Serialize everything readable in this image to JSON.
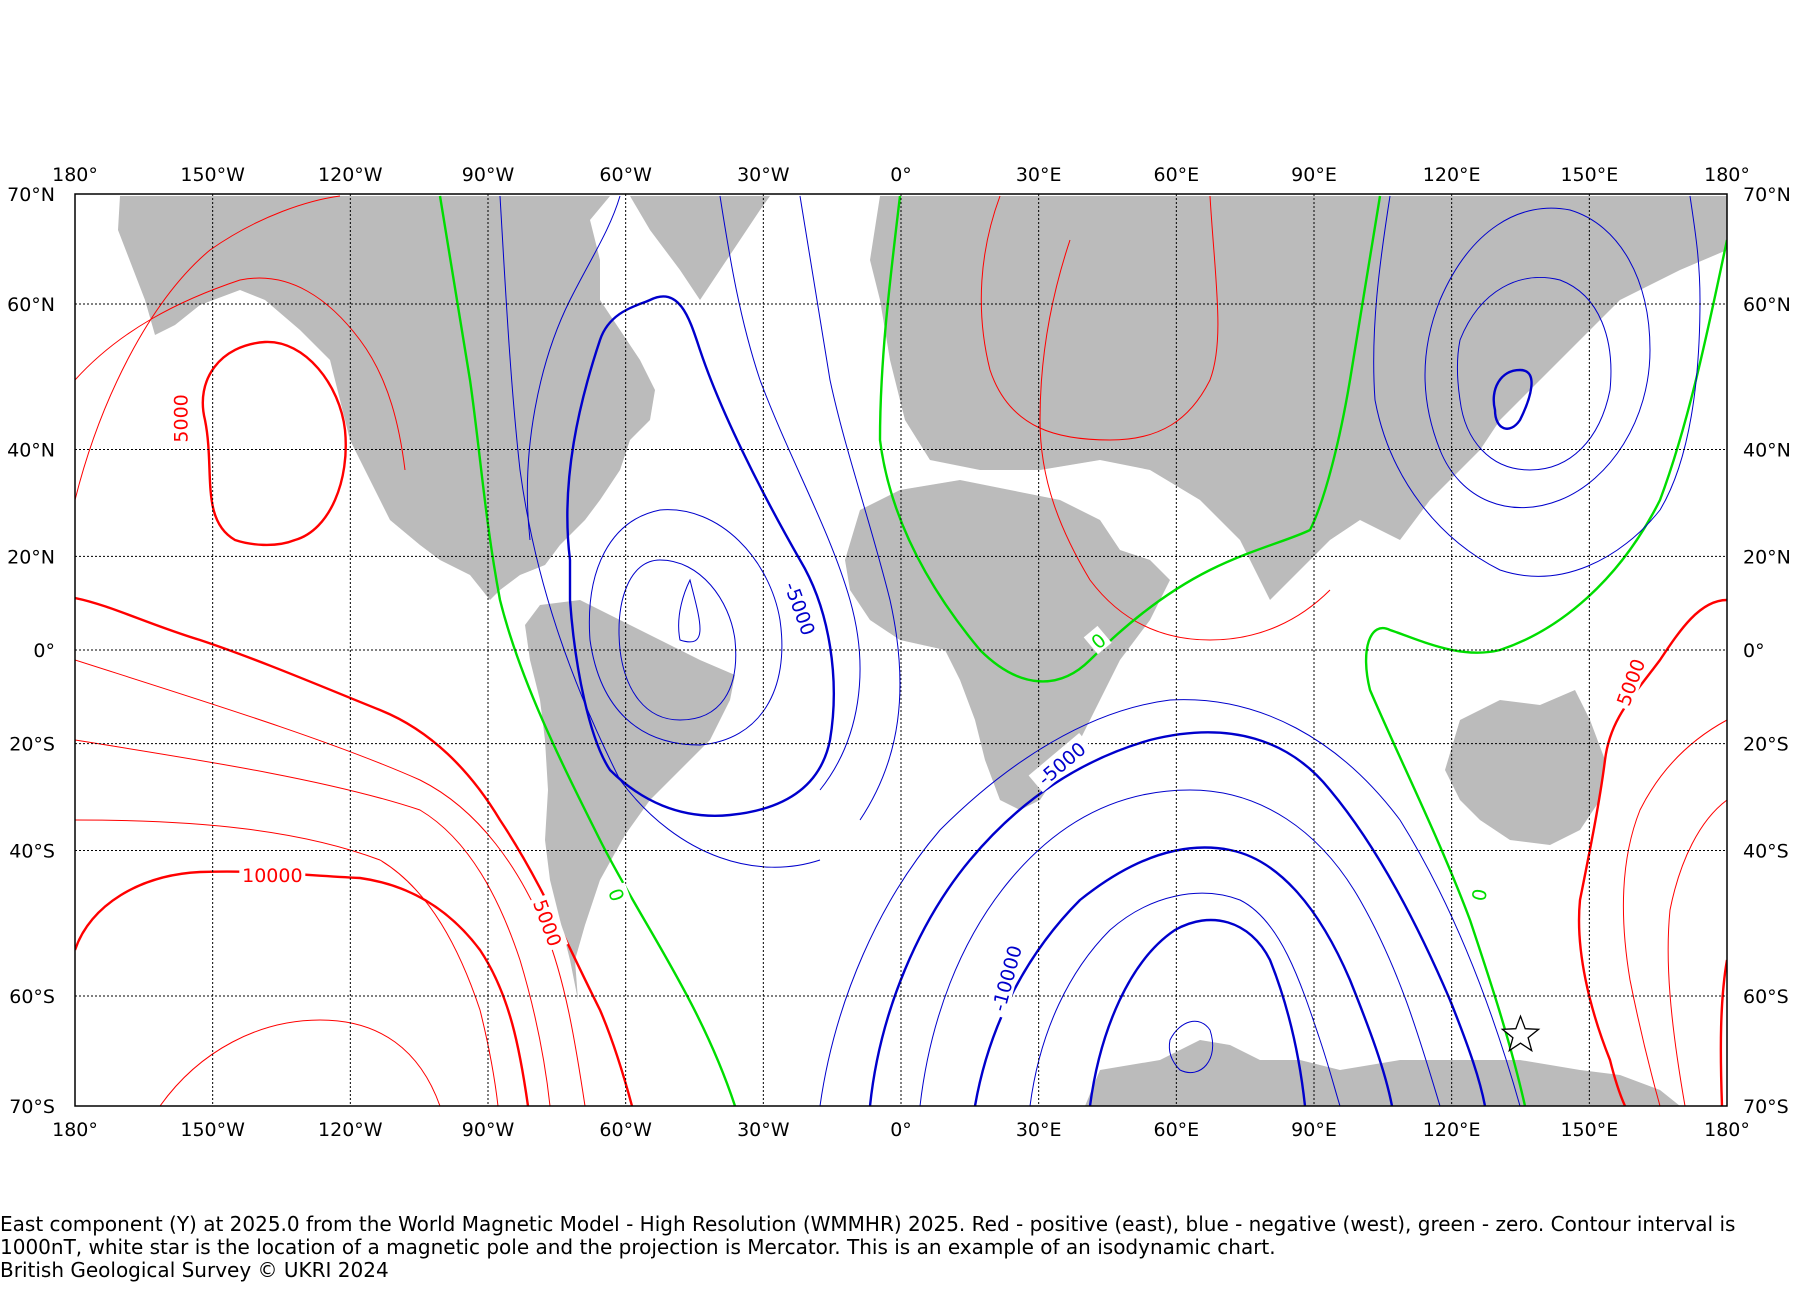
{
  "map": {
    "projection": "Mercator",
    "lon_range": [
      -180,
      180
    ],
    "lat_range": [
      -70,
      70
    ],
    "lon_ticks": [
      {
        "value": -180,
        "label": "180°"
      },
      {
        "value": -150,
        "label": "150°W"
      },
      {
        "value": -120,
        "label": "120°W"
      },
      {
        "value": -90,
        "label": "90°W"
      },
      {
        "value": -60,
        "label": "60°W"
      },
      {
        "value": -30,
        "label": "30°W"
      },
      {
        "value": 0,
        "label": "0°"
      },
      {
        "value": 30,
        "label": "30°E"
      },
      {
        "value": 60,
        "label": "60°E"
      },
      {
        "value": 90,
        "label": "90°E"
      },
      {
        "value": 120,
        "label": "120°E"
      },
      {
        "value": 150,
        "label": "150°E"
      },
      {
        "value": 180,
        "label": "180°"
      }
    ],
    "lat_ticks": [
      {
        "value": 70,
        "label": "70°N"
      },
      {
        "value": 60,
        "label": "60°N"
      },
      {
        "value": 40,
        "label": "40°N"
      },
      {
        "value": 20,
        "label": "20°N"
      },
      {
        "value": 0,
        "label": "0°"
      },
      {
        "value": -20,
        "label": "20°S"
      },
      {
        "value": -40,
        "label": "40°S"
      },
      {
        "value": -60,
        "label": "60°S"
      },
      {
        "value": -70,
        "label": "70°S"
      }
    ],
    "grid": true,
    "colors": {
      "positive": "#ff0000",
      "negative": "#0000cc",
      "zero": "#00dd00",
      "land": "#bbbbbb"
    },
    "contour_labels": [
      {
        "text": "5000",
        "lon": -157,
        "lat": 45,
        "sign": "positive"
      },
      {
        "text": "10000",
        "lon": -137,
        "lat": -44,
        "sign": "positive"
      },
      {
        "text": "5000",
        "lon": -77,
        "lat": -51,
        "sign": "positive"
      },
      {
        "text": "-5000",
        "lon": -22,
        "lat": 9,
        "sign": "negative"
      },
      {
        "text": "-5000",
        "lon": 35,
        "lat": -24,
        "sign": "negative"
      },
      {
        "text": "-10000",
        "lon": 23,
        "lat": -58,
        "sign": "negative"
      },
      {
        "text": "0",
        "lon": -62,
        "lat": -47,
        "sign": "zero"
      },
      {
        "text": "0",
        "lon": 43,
        "lat": 2,
        "sign": "zero"
      },
      {
        "text": "0",
        "lon": 126,
        "lat": -47,
        "sign": "zero"
      },
      {
        "text": "5000",
        "lon": 159,
        "lat": -7,
        "sign": "positive"
      }
    ],
    "magnetic_pole": {
      "lon": 135,
      "lat": -64
    }
  },
  "caption": {
    "line1": "East component (Y) at 2025.0 from the World Magnetic Model - High Resolution (WMMHR) 2025. Red - positive (east), blue - negative (west), green - zero. Contour interval is 1000nT, white star is the location of a magnetic pole and the projection is Mercator. This is an example of an isodynamic chart.",
    "line2": "British Geological Survey © UKRI 2024"
  }
}
